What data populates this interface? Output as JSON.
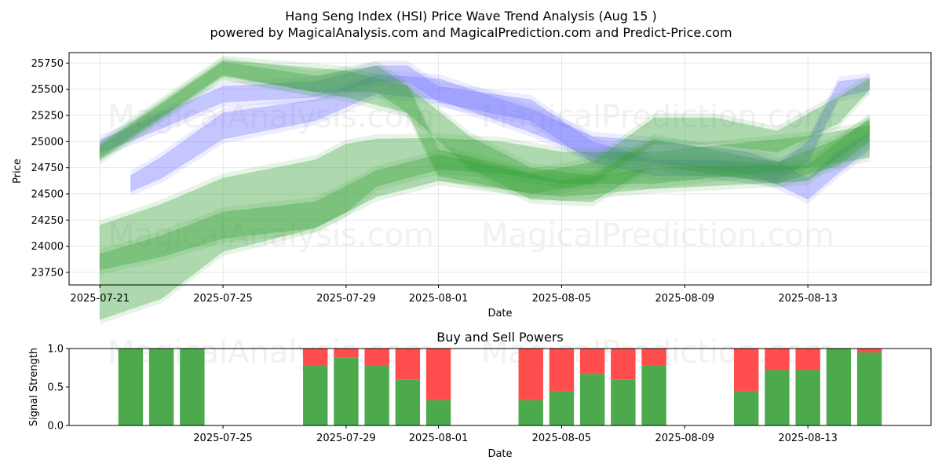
{
  "title": "Hang Seng Index (HSI) Price Wave Trend Analysis (Aug 15 )",
  "subtitle": "powered by MagicalAnalysis.com and MagicalPrediction.com and Predict-Price.com",
  "watermarks": [
    "MagicalAnalysis.com",
    "MagicalPrediction.com"
  ],
  "colors": {
    "blue": "#6b6bff",
    "green": "#2e9e2e",
    "buy": "#4caa4c",
    "sell": "#ff4c4c",
    "grid": "#e6e6e6"
  },
  "chart_data": [
    {
      "type": "area",
      "xlabel": "Date",
      "ylabel": "Price",
      "ylim": [
        23630,
        25850
      ],
      "xlim": [
        "2025-07-20",
        "2025-08-17"
      ],
      "x_ticks": [
        "2025-07-21",
        "2025-07-25",
        "2025-07-29",
        "2025-08-01",
        "2025-08-05",
        "2025-08-09",
        "2025-08-13"
      ],
      "y_ticks": [
        23750,
        24000,
        24250,
        24500,
        24750,
        25000,
        25250,
        25500,
        25750
      ],
      "grid": true,
      "series": [
        {
          "color": "blue",
          "x": [
            "2025-07-22",
            "2025-07-23",
            "2025-07-25",
            "2025-07-28",
            "2025-07-30",
            "2025-08-01",
            "2025-08-04",
            "2025-08-06",
            "2025-08-08",
            "2025-08-11",
            "2025-08-12",
            "2025-08-13",
            "2025-08-14",
            "2025-08-15"
          ],
          "values": [
            24600,
            24750,
            25150,
            25300,
            25550,
            25500,
            25200,
            24950,
            24900,
            24800,
            24700,
            24550,
            24800,
            25000
          ],
          "width": [
            150,
            200,
            250,
            200,
            180,
            200,
            220,
            200,
            200,
            200,
            220,
            200,
            200,
            150
          ]
        },
        {
          "color": "blue",
          "x": [
            "2025-07-21",
            "2025-07-23",
            "2025-07-25",
            "2025-07-28",
            "2025-07-30",
            "2025-07-31",
            "2025-08-01",
            "2025-08-04",
            "2025-08-06",
            "2025-08-08",
            "2025-08-10",
            "2025-08-12",
            "2025-08-13",
            "2025-08-14",
            "2025-08-15"
          ],
          "values": [
            24950,
            25200,
            25450,
            25500,
            25650,
            25650,
            25450,
            25300,
            24900,
            24750,
            24750,
            24700,
            24900,
            25500,
            25550
          ],
          "width": [
            120,
            150,
            150,
            150,
            150,
            150,
            150,
            200,
            200,
            150,
            150,
            150,
            200,
            150,
            120
          ]
        },
        {
          "color": "green",
          "x": [
            "2025-07-21",
            "2025-07-25",
            "2025-07-29",
            "2025-07-31",
            "2025-08-02",
            "2025-08-04",
            "2025-08-06",
            "2025-08-08",
            "2025-08-12",
            "2025-08-14",
            "2025-08-15"
          ],
          "values": [
            24900,
            25700,
            25550,
            25400,
            24900,
            24600,
            24550,
            24900,
            24700,
            24900,
            25100
          ],
          "width": [
            150,
            150,
            250,
            250,
            300,
            300,
            250,
            250,
            200,
            250,
            200
          ]
        },
        {
          "color": "green",
          "x": [
            "2025-07-21",
            "2025-07-25",
            "2025-07-28",
            "2025-07-30",
            "2025-07-31",
            "2025-08-01",
            "2025-08-04",
            "2025-08-06",
            "2025-08-08",
            "2025-08-10",
            "2025-08-12",
            "2025-08-14",
            "2025-08-15"
          ],
          "values": [
            24900,
            25700,
            25550,
            25600,
            25400,
            24800,
            24600,
            24700,
            25100,
            25100,
            25000,
            25300,
            25550
          ],
          "width": [
            100,
            120,
            150,
            250,
            250,
            250,
            200,
            200,
            250,
            250,
            200,
            250,
            100
          ]
        },
        {
          "color": "green",
          "x": [
            "2025-07-21",
            "2025-07-23",
            "2025-07-25",
            "2025-07-28",
            "2025-07-30",
            "2025-08-01",
            "2025-08-05",
            "2025-08-08",
            "2025-08-13",
            "2025-08-15"
          ],
          "values": [
            23850,
            24000,
            24200,
            24300,
            24600,
            24750,
            24550,
            24650,
            24700,
            25150
          ],
          "width": [
            150,
            200,
            250,
            250,
            250,
            250,
            150,
            200,
            150,
            150
          ]
        },
        {
          "color": "green",
          "x": [
            "2025-07-21",
            "2025-07-23",
            "2025-07-25",
            "2025-07-28",
            "2025-07-29",
            "2025-07-30",
            "2025-08-01",
            "2025-08-03",
            "2025-08-05",
            "2025-08-08",
            "2025-08-13",
            "2025-08-15"
          ],
          "values": [
            23750,
            23950,
            24300,
            24500,
            24650,
            24800,
            24880,
            24850,
            24750,
            24750,
            24900,
            25000
          ],
          "width": [
            900,
            900,
            700,
            650,
            650,
            450,
            300,
            300,
            300,
            300,
            300,
            300
          ]
        }
      ]
    },
    {
      "type": "bar",
      "title": "Buy and Sell Powers",
      "xlabel": "Date",
      "ylabel": "Signal Strength",
      "ylim": [
        0,
        1
      ],
      "y_ticks": [
        0.0,
        0.5,
        1.0
      ],
      "x_ticks": [
        "2025-07-25",
        "2025-07-29",
        "2025-08-01",
        "2025-08-05",
        "2025-08-09",
        "2025-08-13"
      ],
      "x": [
        "2025-07-22",
        "2025-07-23",
        "2025-07-24",
        "2025-07-28",
        "2025-07-29",
        "2025-07-30",
        "2025-07-31",
        "2025-08-01",
        "2025-08-04",
        "2025-08-05",
        "2025-08-06",
        "2025-08-07",
        "2025-08-08",
        "2025-08-11",
        "2025-08-12",
        "2025-08-13",
        "2025-08-14",
        "2025-08-15"
      ],
      "series": [
        {
          "name": "buy",
          "color": "buy",
          "values": [
            1.0,
            1.0,
            1.0,
            0.78,
            0.88,
            0.78,
            0.6,
            0.33,
            0.33,
            0.45,
            0.67,
            0.6,
            0.78,
            0.45,
            0.72,
            0.72,
            1.0,
            0.95
          ]
        },
        {
          "name": "sell",
          "color": "sell",
          "values": [
            0.0,
            0.0,
            0.0,
            0.22,
            0.12,
            0.22,
            0.4,
            0.67,
            0.67,
            0.55,
            0.33,
            0.4,
            0.22,
            0.55,
            0.28,
            0.28,
            0.0,
            0.05
          ]
        }
      ]
    }
  ]
}
